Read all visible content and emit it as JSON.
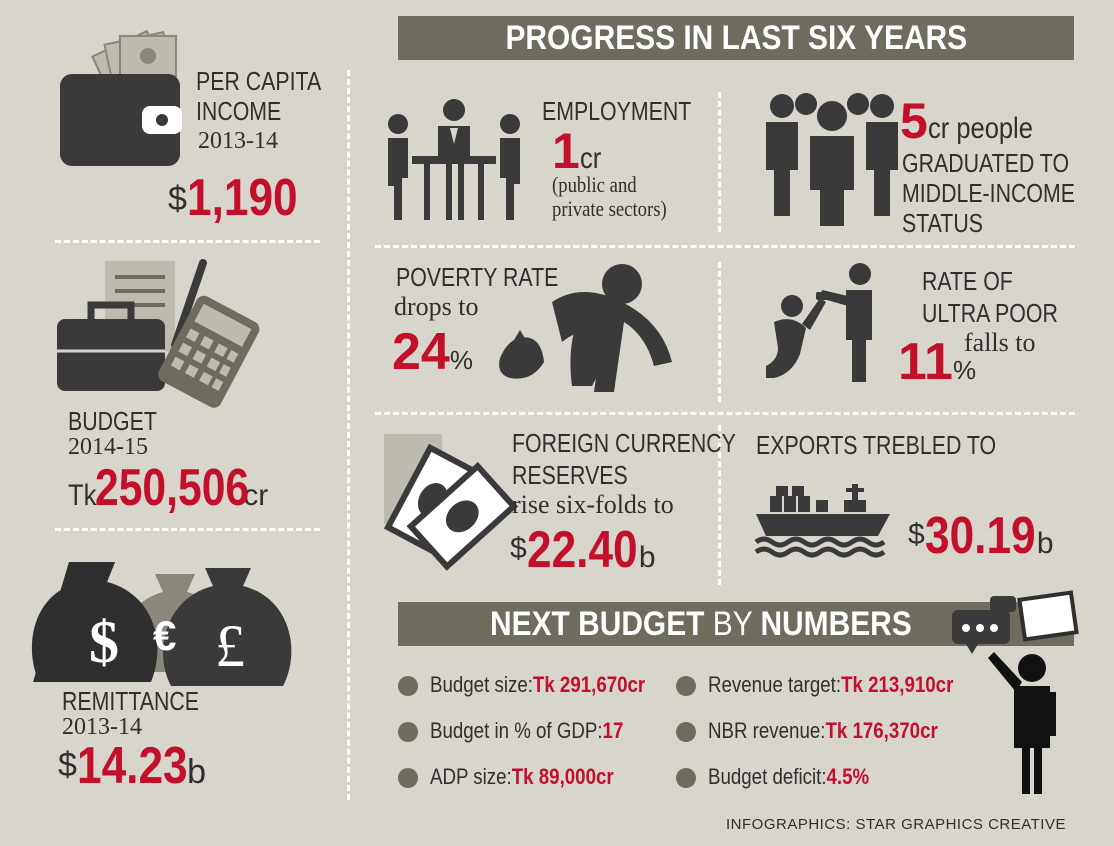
{
  "header": {
    "progress_title": "PROGRESS IN LAST SIX YEARS"
  },
  "left": {
    "per_capita": {
      "label": "PER CAPITA",
      "label2": "INCOME",
      "year": "2013-14",
      "currency": "$",
      "value": "1,190"
    },
    "budget": {
      "label": "BUDGET",
      "year": "2014-15",
      "prefix": "Tk",
      "value": "250,506",
      "unit": "cr"
    },
    "remittance": {
      "label": "REMITTANCE",
      "year": "2013-14",
      "currency": "$",
      "value": "14.23",
      "unit": "b"
    }
  },
  "progress": {
    "employment": {
      "label": "EMPLOYMENT",
      "value": "1",
      "unit": "cr",
      "note1": "(public and",
      "note2": "private sectors)"
    },
    "middle_income": {
      "value": "5",
      "unit": "cr people",
      "line1": "GRADUATED TO",
      "line2": "MIDDLE-INCOME",
      "line3": "STATUS"
    },
    "poverty": {
      "label": "POVERTY RATE",
      "sub": "drops to",
      "value": "24",
      "unit": "%"
    },
    "ultra_poor": {
      "line1": "RATE OF",
      "line2": "ULTRA POOR",
      "sub": "falls to",
      "value": "11",
      "unit": "%"
    },
    "reserves": {
      "line1": "FOREIGN CURRENCY",
      "line2": "RESERVES",
      "sub": "rise six-folds to",
      "currency": "$",
      "value": "22.40",
      "unit": "b"
    },
    "exports": {
      "label": "EXPORTS TREBLED TO",
      "currency": "$",
      "value": "30.19",
      "unit": "b"
    }
  },
  "next_budget": {
    "title_a": "NEXT BUDGET",
    "title_b": " BY ",
    "title_c": "NUMBERS",
    "items": [
      {
        "label": "Budget size:",
        "value": "Tk 291,670cr"
      },
      {
        "label": "Budget in % of GDP:",
        "value": "17"
      },
      {
        "label": "ADP size:",
        "value": "Tk 89,000cr"
      },
      {
        "label": "Revenue target:",
        "value": "Tk 213,910cr"
      },
      {
        "label": "NBR revenue:",
        "value": "Tk 176,370cr"
      },
      {
        "label": "Budget deficit:",
        "value": "4.5%"
      }
    ]
  },
  "credit": "INFOGRAPHICS: STAR GRAPHICS CREATIVE",
  "colors": {
    "background": "#d8d5cc",
    "header": "#6e6b5f",
    "accent_red": "#c2102a",
    "icon_dark": "#3a3a3a"
  }
}
